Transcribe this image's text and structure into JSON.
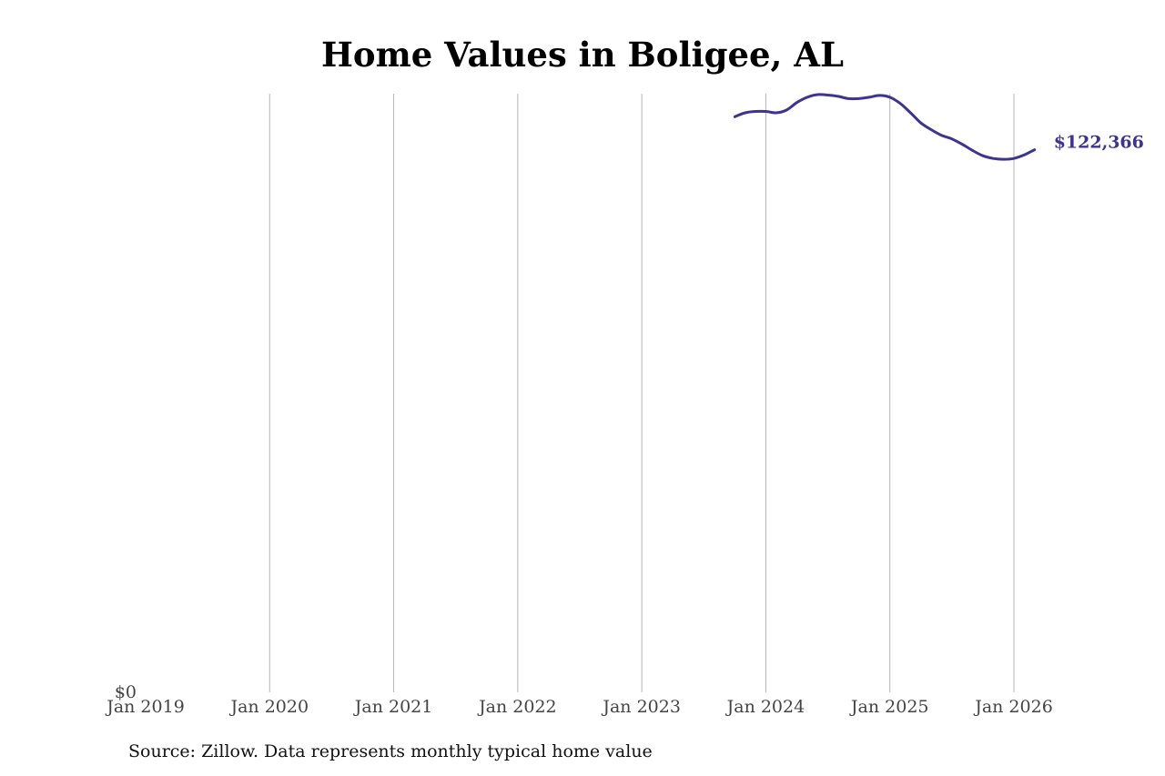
{
  "chart_data": {
    "type": "line",
    "title": "Home Values in Boligee, AL",
    "xlabel": "",
    "ylabel": "",
    "x_ticks": [
      "Jan 2019",
      "Jan 2020",
      "Jan 2021",
      "Jan 2022",
      "Jan 2023",
      "Jan 2024",
      "Jan 2025",
      "Jan 2026"
    ],
    "y_ticks": [
      "$0"
    ],
    "ylim": [
      0,
      135000
    ],
    "xlim": [
      "2019-01",
      "2026-06"
    ],
    "grid": "vertical",
    "series": [
      {
        "color": "#3b3494",
        "end_label": "$122,366",
        "points": [
          {
            "x": "2023-10",
            "y": 129800
          },
          {
            "x": "2023-11",
            "y": 130700
          },
          {
            "x": "2023-12",
            "y": 131000
          },
          {
            "x": "2024-01",
            "y": 131000
          },
          {
            "x": "2024-02",
            "y": 130700
          },
          {
            "x": "2024-03",
            "y": 131300
          },
          {
            "x": "2024-04",
            "y": 133000
          },
          {
            "x": "2024-05",
            "y": 134200
          },
          {
            "x": "2024-06",
            "y": 134800
          },
          {
            "x": "2024-07",
            "y": 134700
          },
          {
            "x": "2024-08",
            "y": 134400
          },
          {
            "x": "2024-09",
            "y": 133900
          },
          {
            "x": "2024-10",
            "y": 133900
          },
          {
            "x": "2024-11",
            "y": 134200
          },
          {
            "x": "2024-12",
            "y": 134600
          },
          {
            "x": "2025-01",
            "y": 134200
          },
          {
            "x": "2025-02",
            "y": 132800
          },
          {
            "x": "2025-03",
            "y": 130700
          },
          {
            "x": "2025-04",
            "y": 128400
          },
          {
            "x": "2025-05",
            "y": 126900
          },
          {
            "x": "2025-06",
            "y": 125600
          },
          {
            "x": "2025-07",
            "y": 124800
          },
          {
            "x": "2025-08",
            "y": 123600
          },
          {
            "x": "2025-09",
            "y": 122200
          },
          {
            "x": "2025-10",
            "y": 121000
          },
          {
            "x": "2025-11",
            "y": 120400
          },
          {
            "x": "2025-12",
            "y": 120200
          },
          {
            "x": "2026-01",
            "y": 120400
          },
          {
            "x": "2026-02",
            "y": 121200
          },
          {
            "x": "2026-03",
            "y": 122366
          }
        ]
      }
    ]
  },
  "source": "Source: Zillow. Data represents monthly typical home value",
  "colors": {
    "series": "#3b3494",
    "grid": "#b5b5b5",
    "tick_text": "#444444"
  }
}
